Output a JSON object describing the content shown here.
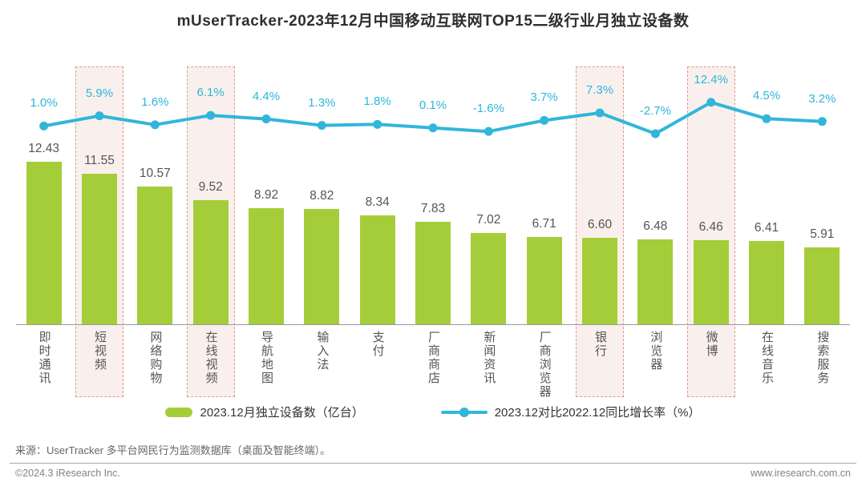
{
  "title": "mUserTracker-2023年12月中国移动互联网TOP15二级行业月独立设备数",
  "chart_data": {
    "type": "bar",
    "categories": [
      "即时通讯",
      "短视频",
      "网络购物",
      "在线视频",
      "导航地图",
      "输入法",
      "支付",
      "厂商商店",
      "新闻资讯",
      "厂商浏览器",
      "银行",
      "浏览器",
      "微博",
      "在线音乐",
      "搜索服务"
    ],
    "series": [
      {
        "name": "2023.12月独立设备数（亿台）",
        "type": "bar",
        "values": [
          12.43,
          11.55,
          10.57,
          9.52,
          8.92,
          8.82,
          8.34,
          7.83,
          7.02,
          6.71,
          6.6,
          6.48,
          6.46,
          6.41,
          5.91
        ]
      },
      {
        "name": "2023.12对比2022.12同比增长率（%）",
        "type": "line",
        "values": [
          1.0,
          5.9,
          1.6,
          6.1,
          4.4,
          1.3,
          1.8,
          0.1,
          -1.6,
          3.7,
          7.3,
          -2.7,
          12.4,
          4.5,
          3.2
        ]
      }
    ],
    "highlighted_categories": [
      "短视频",
      "在线视频",
      "银行",
      "微博"
    ],
    "xlabel": "",
    "ylabel": "",
    "ylim_bar": [
      0,
      13
    ],
    "ylim_line": [
      -5,
      14
    ],
    "grid": false,
    "legend_position": "bottom"
  },
  "source_note": "来源：UserTracker 多平台网民行为监测数据库（桌面及智能终端）。",
  "footer": {
    "left": "©2024.3 iResearch Inc.",
    "right": "www.iresearch.com.cn"
  },
  "colors": {
    "bar": "#a5cd39",
    "line": "#31b6da",
    "pct_label": "#2db6da",
    "value_label": "#555555",
    "highlight_bg": "#f9f0ed",
    "highlight_border": "#e39a8d"
  }
}
